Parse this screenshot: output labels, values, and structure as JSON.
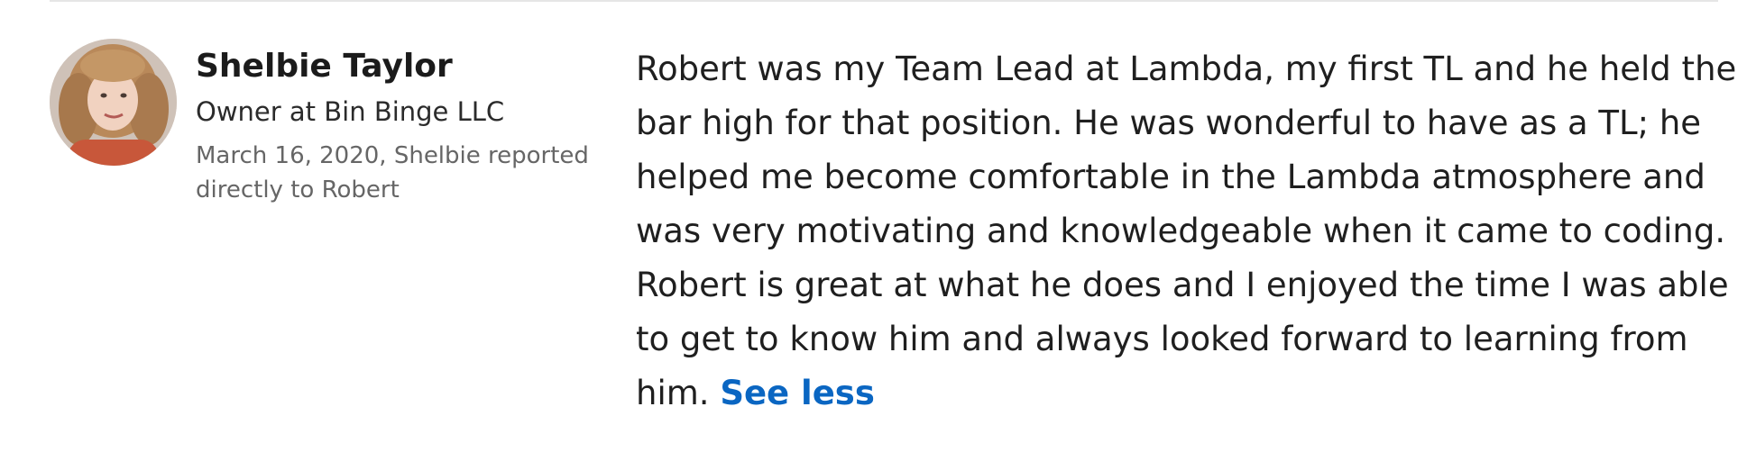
{
  "recommendation": {
    "author": {
      "name": "Shelbie Taylor",
      "headline": "Owner at Bin Binge LLC",
      "meta_line_1": "March 16, 2020, Shelbie reported",
      "meta_line_2": "directly to Robert",
      "avatar_icon": "profile-photo"
    },
    "text_lines": [
      "Robert was my Team Lead at Lambda, my first TL and he held the",
      "bar high for that position. He was wonderful to have as a TL; he",
      "helped me become comfortable in the Lambda atmosphere and",
      "was very motivating and knowledgeable when it came to coding.",
      "Robert is great at what he does and I enjoyed the time I was able",
      "to get to know him and always looked forward to learning from",
      "him."
    ],
    "see_less_label": "See less",
    "colors": {
      "link": "#0a66c2",
      "meta": "#666666",
      "divider": "#e6e6e6"
    }
  }
}
